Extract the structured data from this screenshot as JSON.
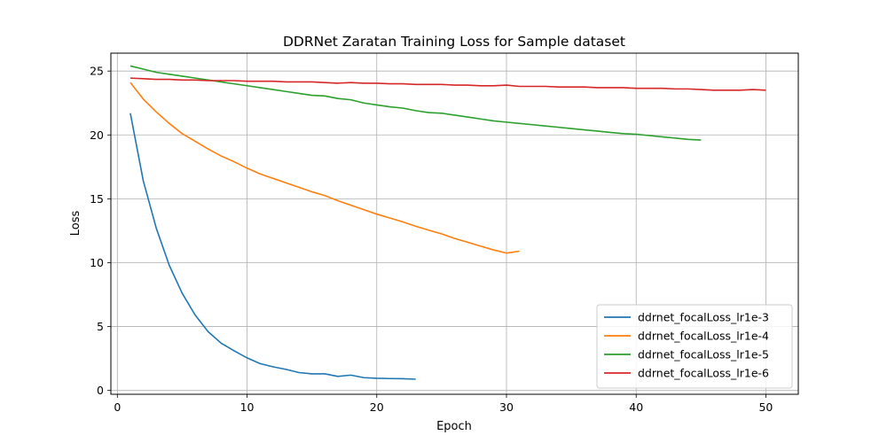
{
  "chart_data": {
    "type": "line",
    "title": "DDRNet Zaratan Training Loss for Sample dataset",
    "xlabel": "Epoch",
    "ylabel": "Loss",
    "xlim": [
      -0.5,
      52.5
    ],
    "ylim": [
      -0.3,
      26.4
    ],
    "xticks": [
      0,
      10,
      20,
      30,
      40,
      50
    ],
    "yticks": [
      0,
      5,
      10,
      15,
      20,
      25
    ],
    "grid": true,
    "legend_position": "lower-right",
    "series": [
      {
        "name": "ddrnet_focalLoss_lr1e-3",
        "color": "#1f77b4",
        "x": [
          1,
          2,
          3,
          4,
          5,
          6,
          7,
          8,
          9,
          10,
          11,
          12,
          13,
          14,
          15,
          16,
          17,
          18,
          19,
          20,
          21,
          22,
          23
        ],
        "y": [
          21.7,
          16.4,
          12.7,
          9.8,
          7.6,
          5.9,
          4.6,
          3.7,
          3.1,
          2.55,
          2.1,
          1.85,
          1.65,
          1.4,
          1.3,
          1.3,
          1.1,
          1.2,
          1.0,
          0.95,
          0.93,
          0.92,
          0.88
        ]
      },
      {
        "name": "ddrnet_focalLoss_lr1e-4",
        "color": "#ff7f0e",
        "x": [
          1,
          2,
          3,
          4,
          5,
          6,
          7,
          8,
          9,
          10,
          11,
          12,
          13,
          14,
          15,
          16,
          17,
          18,
          19,
          20,
          21,
          22,
          23,
          24,
          25,
          26,
          27,
          28,
          29,
          30,
          31
        ],
        "y": [
          24.1,
          22.8,
          21.8,
          20.9,
          20.1,
          19.5,
          18.9,
          18.35,
          17.9,
          17.4,
          16.95,
          16.6,
          16.25,
          15.9,
          15.55,
          15.25,
          14.85,
          14.5,
          14.15,
          13.8,
          13.5,
          13.2,
          12.85,
          12.55,
          12.25,
          11.9,
          11.6,
          11.3,
          11.0,
          10.75,
          10.9
        ]
      },
      {
        "name": "ddrnet_focalLoss_lr1e-5",
        "color": "#2ca02c",
        "x": [
          1,
          2,
          3,
          4,
          5,
          6,
          7,
          8,
          9,
          10,
          11,
          12,
          13,
          14,
          15,
          16,
          17,
          18,
          19,
          20,
          21,
          22,
          23,
          24,
          25,
          26,
          27,
          28,
          29,
          30,
          31,
          32,
          33,
          34,
          35,
          36,
          37,
          38,
          39,
          40,
          41,
          42,
          43,
          44,
          45
        ],
        "y": [
          25.4,
          25.15,
          24.9,
          24.75,
          24.6,
          24.45,
          24.3,
          24.15,
          24.0,
          23.85,
          23.7,
          23.55,
          23.4,
          23.25,
          23.1,
          23.05,
          22.85,
          22.75,
          22.5,
          22.35,
          22.2,
          22.1,
          21.9,
          21.75,
          21.7,
          21.55,
          21.4,
          21.25,
          21.1,
          21.0,
          20.9,
          20.8,
          20.7,
          20.6,
          20.5,
          20.4,
          20.3,
          20.2,
          20.1,
          20.05,
          19.95,
          19.85,
          19.75,
          19.65,
          19.6
        ]
      },
      {
        "name": "ddrnet_focalLoss_lr1e-6",
        "color": "#d62728",
        "x": [
          1,
          2,
          3,
          4,
          5,
          6,
          7,
          8,
          9,
          10,
          11,
          12,
          13,
          14,
          15,
          16,
          17,
          18,
          19,
          20,
          21,
          22,
          23,
          24,
          25,
          26,
          27,
          28,
          29,
          30,
          31,
          32,
          33,
          34,
          35,
          36,
          37,
          38,
          39,
          40,
          41,
          42,
          43,
          44,
          45,
          46,
          47,
          48,
          49,
          50
        ],
        "y": [
          24.45,
          24.4,
          24.35,
          24.35,
          24.3,
          24.3,
          24.25,
          24.25,
          24.25,
          24.2,
          24.2,
          24.2,
          24.15,
          24.15,
          24.15,
          24.1,
          24.05,
          24.1,
          24.05,
          24.05,
          24.0,
          24.0,
          23.95,
          23.95,
          23.95,
          23.9,
          23.9,
          23.85,
          23.85,
          23.9,
          23.8,
          23.8,
          23.8,
          23.75,
          23.75,
          23.75,
          23.7,
          23.7,
          23.7,
          23.65,
          23.65,
          23.65,
          23.6,
          23.6,
          23.55,
          23.5,
          23.5,
          23.5,
          23.55,
          23.5
        ]
      }
    ]
  }
}
